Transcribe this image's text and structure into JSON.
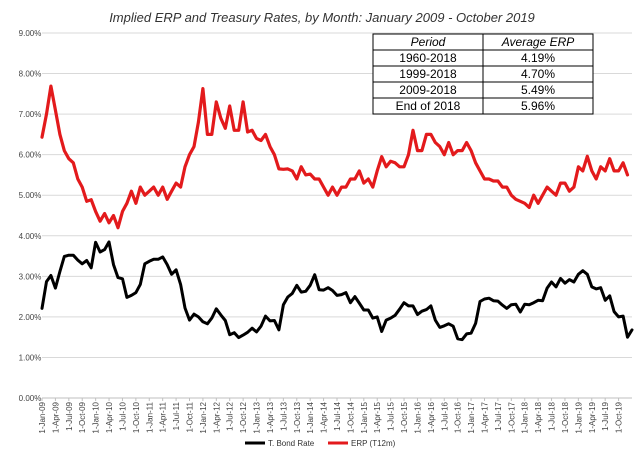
{
  "chart_data": {
    "type": "line",
    "title": "Implied ERP and Treasury Rates, by Month: January 2009 - October 2019",
    "xlabel": "",
    "ylabel": "",
    "ylim": [
      0,
      9
    ],
    "y_ticks": [
      "0.00%",
      "1.00%",
      "2.00%",
      "3.00%",
      "4.00%",
      "5.00%",
      "6.00%",
      "7.00%",
      "8.00%",
      "9.00%"
    ],
    "x_tick_labels": [
      "1-Jan-09",
      "1-Apr-09",
      "1-Jul-09",
      "1-Oct-09",
      "1-Jan-10",
      "1-Apr-10",
      "1-Jul-10",
      "1-Oct-10",
      "1-Jan-11",
      "1-Apr-11",
      "1-Jul-11",
      "1-Oct-11",
      "1-Jan-12",
      "1-Apr-12",
      "1-Jul-12",
      "1-Oct-12",
      "1-Jan-13",
      "1-Apr-13",
      "1-Jul-13",
      "1-Oct-13",
      "1-Jan-14",
      "1-Apr-14",
      "1-Jul-14",
      "1-Oct-14",
      "1-Jan-15",
      "1-Apr-15",
      "1-Jul-15",
      "1-Oct-15",
      "1-Jan-16",
      "1-Apr-16",
      "1-Jul-16",
      "1-Oct-16",
      "1-Jan-17",
      "1-Apr-17",
      "1-Jul-17",
      "1-Oct-17",
      "1-Jan-18",
      "1-Apr-18",
      "1-Jul-18",
      "1-Oct-18",
      "1-Jan-19",
      "1-Apr-19",
      "1-Jul-19",
      "1-Oct-19"
    ],
    "grid": true,
    "legend_position": "bottom",
    "series": [
      {
        "name": "T. Bond Rate",
        "color": "#000000",
        "values": [
          2.21,
          2.87,
          3.02,
          2.71,
          3.12,
          3.49,
          3.52,
          3.52,
          3.4,
          3.31,
          3.39,
          3.21,
          3.84,
          3.6,
          3.66,
          3.85,
          3.29,
          2.97,
          2.94,
          2.48,
          2.53,
          2.6,
          2.8,
          3.31,
          3.37,
          3.42,
          3.42,
          3.48,
          3.29,
          3.05,
          3.16,
          2.8,
          2.22,
          1.92,
          2.07,
          2.0,
          1.88,
          1.83,
          1.97,
          2.2,
          2.05,
          1.91,
          1.56,
          1.61,
          1.49,
          1.55,
          1.62,
          1.72,
          1.63,
          1.77,
          2.02,
          1.9,
          1.91,
          1.68,
          2.3,
          2.49,
          2.58,
          2.78,
          2.61,
          2.63,
          2.78,
          3.04,
          2.67,
          2.66,
          2.72,
          2.65,
          2.53,
          2.55,
          2.6,
          2.35,
          2.5,
          2.34,
          2.17,
          2.17,
          1.97,
          2.0,
          1.64,
          1.92,
          1.97,
          2.04,
          2.19,
          2.35,
          2.27,
          2.27,
          2.06,
          2.14,
          2.18,
          2.27,
          1.92,
          1.74,
          1.78,
          1.83,
          1.77,
          1.46,
          1.44,
          1.58,
          1.6,
          1.84,
          2.38,
          2.44,
          2.46,
          2.4,
          2.39,
          2.29,
          2.21,
          2.3,
          2.31,
          2.12,
          2.31,
          2.3,
          2.35,
          2.41,
          2.4,
          2.71,
          2.86,
          2.74,
          2.95,
          2.83,
          2.92,
          2.86,
          3.05,
          3.14,
          3.05,
          2.74,
          2.69,
          2.72,
          2.41,
          2.52,
          2.13,
          2.0,
          2.02,
          1.5,
          1.68
        ]
      },
      {
        "name": "ERP (T12m)",
        "color": "#e31a1c",
        "values": [
          6.43,
          7.0,
          7.69,
          7.1,
          6.5,
          6.1,
          5.9,
          5.8,
          5.4,
          5.2,
          4.85,
          4.89,
          4.6,
          4.36,
          4.55,
          4.32,
          4.5,
          4.2,
          4.6,
          4.8,
          5.1,
          4.8,
          5.2,
          5.0,
          5.1,
          5.2,
          5.0,
          5.2,
          4.9,
          5.1,
          5.3,
          5.2,
          5.7,
          6.0,
          6.2,
          6.8,
          7.63,
          6.5,
          6.5,
          7.3,
          6.9,
          6.65,
          7.2,
          6.6,
          6.6,
          7.3,
          6.56,
          6.6,
          6.4,
          6.35,
          6.5,
          6.2,
          6.0,
          5.65,
          5.64,
          5.65,
          5.6,
          5.4,
          5.7,
          5.5,
          5.52,
          5.4,
          5.4,
          5.2,
          5.0,
          5.2,
          5.0,
          5.2,
          5.2,
          5.4,
          5.4,
          5.6,
          5.3,
          5.4,
          5.2,
          5.6,
          5.95,
          5.7,
          5.84,
          5.8,
          5.7,
          5.7,
          6.0,
          6.6,
          6.1,
          6.1,
          6.5,
          6.5,
          6.3,
          6.2,
          6.0,
          6.3,
          6.0,
          6.1,
          6.1,
          6.3,
          6.1,
          5.8,
          5.6,
          5.4,
          5.4,
          5.35,
          5.35,
          5.2,
          5.2,
          5.0,
          4.9,
          4.85,
          4.8,
          4.7,
          5.0,
          4.8,
          5.0,
          5.2,
          5.1,
          5.0,
          5.3,
          5.3,
          5.1,
          5.2,
          5.7,
          5.6,
          5.96,
          5.6,
          5.4,
          5.7,
          5.6,
          5.9,
          5.6,
          5.6,
          5.8,
          5.5
        ]
      }
    ],
    "table": {
      "headers": [
        "Period",
        "Average ERP"
      ],
      "rows": [
        [
          "1960-2018",
          "4.19%"
        ],
        [
          "1999-2018",
          "4.70%"
        ],
        [
          "2009-2018",
          "5.49%"
        ],
        [
          "End of 2018",
          "5.96%"
        ]
      ]
    }
  }
}
